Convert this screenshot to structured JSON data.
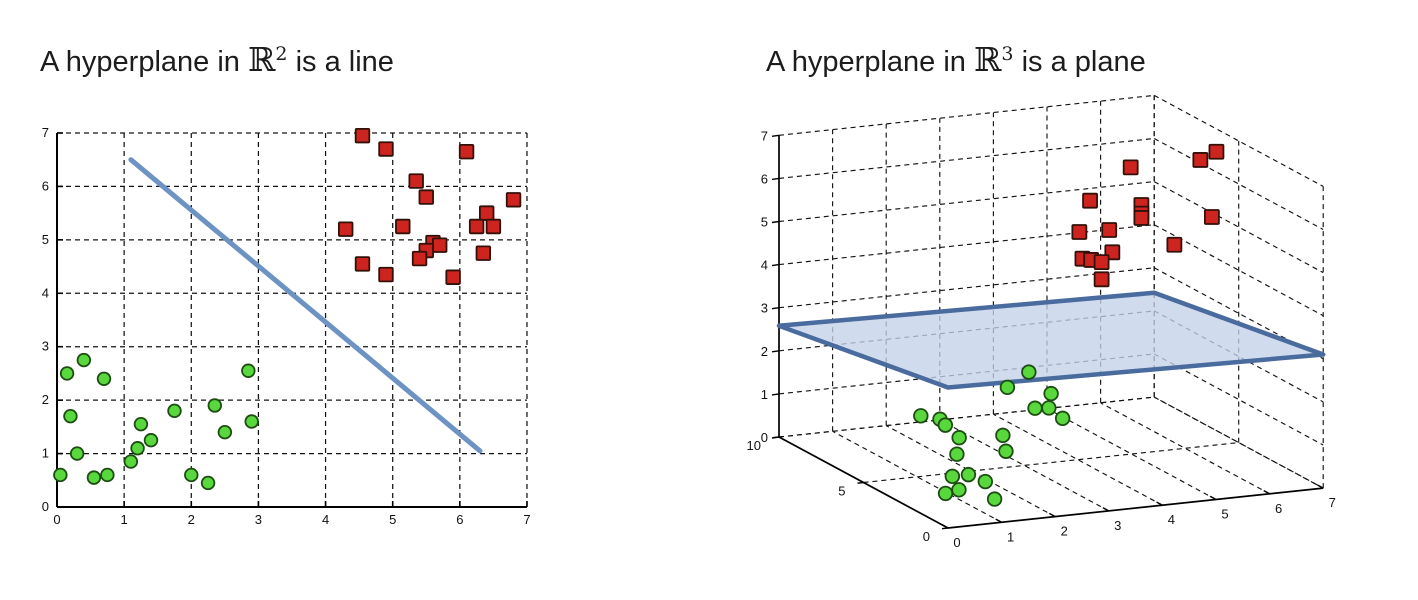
{
  "chart_data": [
    {
      "type": "scatter",
      "title_parts": {
        "prefix": "A hyperplane in ",
        "math": "ℝ",
        "sup": "2",
        "suffix": " is a line"
      },
      "xlim": [
        0,
        7
      ],
      "ylim": [
        0,
        7
      ],
      "xticks": [
        0,
        1,
        2,
        3,
        4,
        5,
        6,
        7
      ],
      "yticks": [
        0,
        1,
        2,
        3,
        4,
        5,
        6,
        7
      ],
      "grid": "dashed",
      "legend": "none",
      "series": [
        {
          "name": "green-class",
          "marker": "circle",
          "fill": "#58d83c",
          "edge": "#1d4d12",
          "points": [
            [
              0.4,
              2.75
            ],
            [
              0.15,
              2.5
            ],
            [
              0.7,
              2.4
            ],
            [
              2.85,
              2.55
            ],
            [
              0.2,
              1.7
            ],
            [
              1.75,
              1.8
            ],
            [
              2.35,
              1.9
            ],
            [
              2.9,
              1.6
            ],
            [
              1.25,
              1.55
            ],
            [
              2.5,
              1.4
            ],
            [
              1.4,
              1.25
            ],
            [
              1.2,
              1.1
            ],
            [
              0.3,
              1.0
            ],
            [
              1.1,
              0.85
            ],
            [
              0.05,
              0.6
            ],
            [
              0.55,
              0.55
            ],
            [
              0.75,
              0.6
            ],
            [
              2.0,
              0.6
            ],
            [
              2.25,
              0.45
            ]
          ]
        },
        {
          "name": "red-class",
          "marker": "square",
          "fill": "#cd241f",
          "edge": "#331108",
          "points": [
            [
              4.55,
              6.95
            ],
            [
              4.9,
              6.7
            ],
            [
              6.1,
              6.65
            ],
            [
              5.35,
              6.1
            ],
            [
              5.5,
              5.8
            ],
            [
              6.8,
              5.75
            ],
            [
              6.4,
              5.5
            ],
            [
              4.3,
              5.2
            ],
            [
              5.15,
              5.25
            ],
            [
              6.25,
              5.25
            ],
            [
              6.5,
              5.25
            ],
            [
              5.6,
              4.95
            ],
            [
              5.7,
              4.9
            ],
            [
              5.5,
              4.8
            ],
            [
              5.4,
              4.65
            ],
            [
              4.55,
              4.55
            ],
            [
              6.35,
              4.75
            ],
            [
              4.9,
              4.35
            ],
            [
              5.9,
              4.3
            ]
          ]
        }
      ],
      "separator_line": {
        "from": [
          1.1,
          6.5
        ],
        "to": [
          6.3,
          1.05
        ],
        "color": "#6d92c4",
        "width": 5
      }
    },
    {
      "type": "scatter3d",
      "title_parts": {
        "prefix": "A hyperplane in ",
        "math": "ℝ",
        "sup": "3",
        "suffix": " is a plane"
      },
      "xlim": [
        0,
        7
      ],
      "ylim": [
        0,
        10
      ],
      "zlim": [
        0,
        7
      ],
      "xticks": [
        0,
        1,
        2,
        3,
        4,
        5,
        6,
        7
      ],
      "yticks": [
        0,
        5,
        10
      ],
      "zticks": [
        0,
        1,
        2,
        3,
        4,
        5,
        6,
        7
      ],
      "grid": "dashed",
      "series": [
        {
          "name": "green-class",
          "marker": "circle",
          "fill": "#58d83c",
          "edge": "#1d4d12",
          "points": [
            [
              3.4,
              6,
              1.9
            ],
            [
              3.0,
              6,
              1.6
            ],
            [
              3.5,
              5,
              1.6
            ],
            [
              3.2,
              5,
              1.3
            ],
            [
              3.3,
              4.5,
              1.4
            ],
            [
              3.4,
              4,
              1.25
            ],
            [
              1.7,
              7,
              0.9
            ],
            [
              1.9,
              6.5,
              0.9
            ],
            [
              2.0,
              6.5,
              0.75
            ],
            [
              2.1,
              6,
              0.55
            ],
            [
              2.6,
              5,
              0.75
            ],
            [
              2.5,
              4.5,
              0.5
            ],
            [
              1.9,
              5.5,
              0.3
            ],
            [
              1.8,
              4.5,
              0.05
            ],
            [
              1.5,
              4.5,
              0.05
            ],
            [
              1.8,
              3.5,
              0.1
            ],
            [
              0.9,
              3,
              0.05
            ],
            [
              1.15,
              3,
              0.1
            ],
            [
              1.5,
              2,
              0.05
            ]
          ]
        },
        {
          "name": "red-class",
          "marker": "square",
          "fill": "#cd241f",
          "edge": "#331108",
          "points": [
            [
              5.3,
              6,
              6.4
            ],
            [
              6.6,
              6,
              6.4
            ],
            [
              6.9,
              6,
              6.55
            ],
            [
              4.7,
              6.5,
              5.6
            ],
            [
              5.5,
              6,
              5.5
            ],
            [
              5.5,
              6,
              5.3
            ],
            [
              5.5,
              6,
              5.2
            ],
            [
              6.5,
              5,
              5.3
            ],
            [
              4.5,
              6.5,
              4.9
            ],
            [
              4.9,
              6,
              5.0
            ],
            [
              5.8,
              5,
              4.75
            ],
            [
              4.8,
              5.5,
              4.6
            ],
            [
              4.4,
              6,
              4.4
            ],
            [
              4.5,
              5.8,
              4.4
            ],
            [
              4.6,
              5.5,
              4.4
            ],
            [
              4.6,
              5.5,
              4.0
            ]
          ]
        }
      ],
      "separator_plane": {
        "corners": [
          [
            0,
            10,
            2.58
          ],
          [
            7,
            10,
            2.42
          ],
          [
            7,
            0,
            3.1
          ],
          [
            0,
            0,
            3.26
          ]
        ],
        "fill": "#c3d2e9",
        "fill_opacity": 0.78,
        "edge": "#4a6b9e",
        "edge_width": 4.5
      }
    }
  ]
}
